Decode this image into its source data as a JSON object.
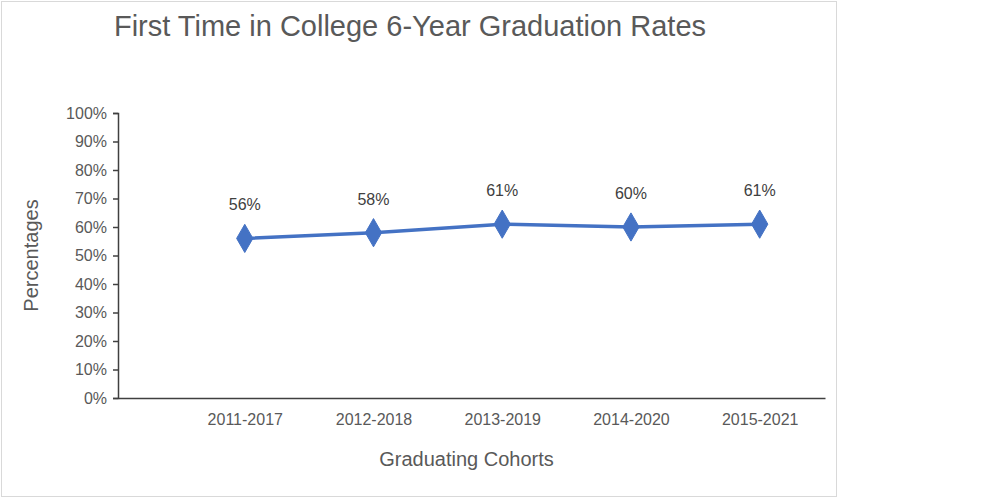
{
  "chart_data": {
    "type": "line",
    "title": "First Time in College 6-Year Graduation Rates",
    "x_label": "Graduating Cohorts",
    "y_label": "Percentages",
    "categories": [
      "2011-2017",
      "2012-2018",
      "2013-2019",
      "2014-2020",
      "2015-2021"
    ],
    "values": [
      56,
      58,
      61,
      60,
      61
    ],
    "value_labels": [
      "56%",
      "58%",
      "61%",
      "60%",
      "61%"
    ],
    "color": "#4472c4",
    "marker": "diamond",
    "data_labels": true,
    "grid": false,
    "ylim": [
      0,
      100
    ],
    "yticks": [
      {
        "value": 0,
        "label": "0%"
      },
      {
        "value": 10,
        "label": "10%"
      },
      {
        "value": 20,
        "label": "20%"
      },
      {
        "value": 30,
        "label": "30%"
      },
      {
        "value": 40,
        "label": "40%"
      },
      {
        "value": 50,
        "label": "50%"
      },
      {
        "value": 60,
        "label": "60%"
      },
      {
        "value": 70,
        "label": "70%"
      },
      {
        "value": 80,
        "label": "80%"
      },
      {
        "value": 90,
        "label": "90%"
      },
      {
        "value": 100,
        "label": "100%"
      }
    ]
  }
}
